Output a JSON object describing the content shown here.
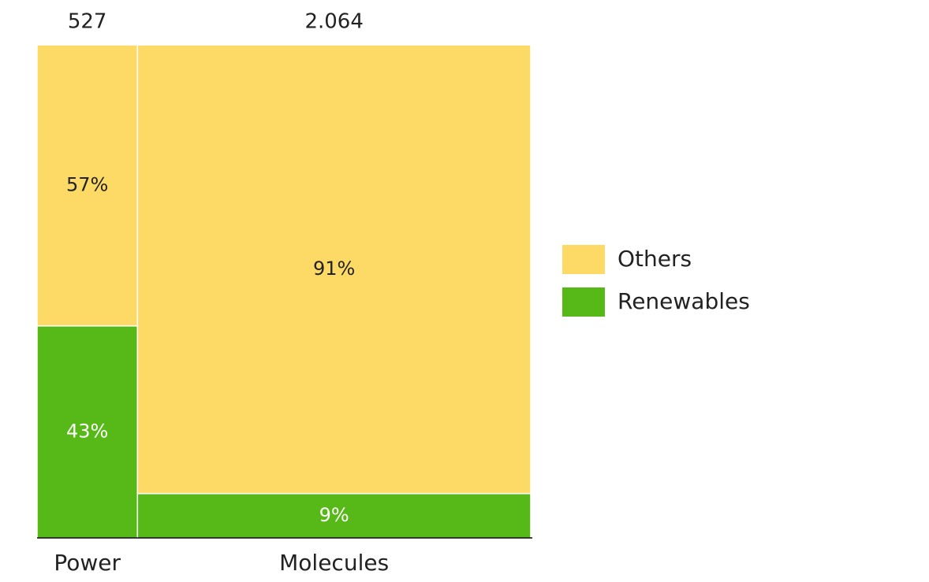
{
  "chart_data": {
    "type": "mekko",
    "categories": [
      "Power",
      "Molecules"
    ],
    "totals": [
      527,
      2064
    ],
    "total_labels": [
      "527",
      "2.064"
    ],
    "ylim": [
      0,
      100
    ],
    "series": [
      {
        "name": "Others",
        "color": "#fdd966",
        "label_color": "#222222",
        "values": [
          57,
          91
        ],
        "value_labels": [
          "57%",
          "91%"
        ]
      },
      {
        "name": "Renewables",
        "color": "#56b917",
        "label_color": "#ffffff",
        "values": [
          43,
          9
        ],
        "value_labels": [
          "43%",
          "9%"
        ]
      }
    ],
    "stack_order": "bottom-up-reverse",
    "legend": "right"
  }
}
